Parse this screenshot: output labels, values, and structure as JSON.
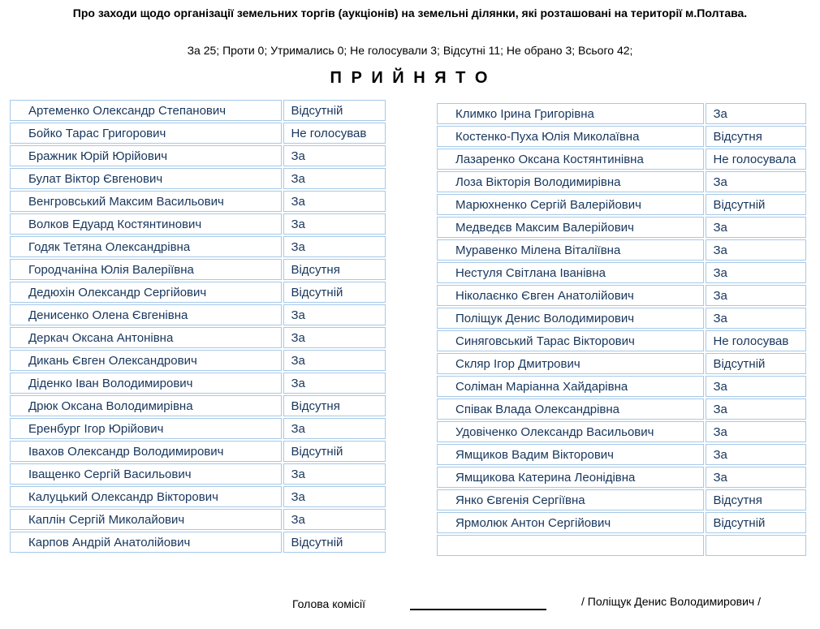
{
  "header": {
    "title": "Про заходи щодо організації земельних торгів (аукціонів) на земельні ділянки, які розташовані на території м.Полтава.",
    "summary": "За 25; Проти 0; Утримались 0; Не голосували 3; Відсутні 11; Не обрано 3; Всього 42;",
    "result": "П Р И Й Н Я Т О"
  },
  "colors": {
    "table_text": "#17365d",
    "table_border": "#a6c9e8",
    "header_text": "#000000"
  },
  "tables": {
    "left": {
      "rows": [
        {
          "name": "Артеменко Олександр Степанович",
          "vote": "Відсутній"
        },
        {
          "name": "Бойко Тарас Григорович",
          "vote": "Не голосував"
        },
        {
          "name": "Бражник Юрій Юрійович",
          "vote": "За"
        },
        {
          "name": "Булат Віктор Євгенович",
          "vote": "За"
        },
        {
          "name": "Венгровський Максим Васильович",
          "vote": "За"
        },
        {
          "name": "Волков Едуард Костянтинович",
          "vote": "За"
        },
        {
          "name": "Годяк Тетяна Олександрівна",
          "vote": "За"
        },
        {
          "name": "Городчаніна Юлія Валеріївна",
          "vote": "Відсутня"
        },
        {
          "name": "Дедюхін Олександр Сергійович",
          "vote": "Відсутній"
        },
        {
          "name": "Денисенко Олена Євгенівна",
          "vote": "За"
        },
        {
          "name": "Деркач Оксана Антонівна",
          "vote": "За"
        },
        {
          "name": "Дикань Євген Олександрович",
          "vote": "За"
        },
        {
          "name": "Діденко Іван Володимирович",
          "vote": "За"
        },
        {
          "name": "Дрюк Оксана Володимирівна",
          "vote": "Відсутня"
        },
        {
          "name": "Еренбург Ігор Юрійович",
          "vote": "За"
        },
        {
          "name": "Івахов Олександр Володимирович",
          "vote": "Відсутній"
        },
        {
          "name": "Іващенко Сергій Васильович",
          "vote": "За"
        },
        {
          "name": "Калуцький Олександр Вікторович",
          "vote": "За"
        },
        {
          "name": "Каплін Сергій Миколайович",
          "vote": "За"
        },
        {
          "name": "Карпов Андрій Анатолійович",
          "vote": "Відсутній"
        }
      ]
    },
    "right": {
      "rows": [
        {
          "name": "Климко Ірина Григорівна",
          "vote": "За"
        },
        {
          "name": "Костенко-Пуха Юлія Миколаївна",
          "vote": "Відсутня"
        },
        {
          "name": "Лазаренко Оксана Костянтинівна",
          "vote": "Не голосувала"
        },
        {
          "name": "Лоза Вікторія Володимирівна",
          "vote": "За"
        },
        {
          "name": "Марюхненко Сергій Валерійович",
          "vote": "Відсутній"
        },
        {
          "name": "Медведєв Максим Валерійович",
          "vote": "За"
        },
        {
          "name": "Муравенко Мілена Віталіївна",
          "vote": "За"
        },
        {
          "name": "Нестуля Світлана Іванівна",
          "vote": "За"
        },
        {
          "name": "Ніколаєнко Євген Анатолійович",
          "vote": "За"
        },
        {
          "name": "Поліщук Денис Володимирович",
          "vote": "За"
        },
        {
          "name": "Синяговський Тарас Вікторович",
          "vote": "Не голосував"
        },
        {
          "name": "Скляр Ігор Дмитрович",
          "vote": "Відсутній"
        },
        {
          "name": "Соліман Маріанна Хайдарівна",
          "vote": "За"
        },
        {
          "name": "Співак Влада Олександрівна",
          "vote": "За"
        },
        {
          "name": "Удовіченко Олександр Васильович",
          "vote": "За"
        },
        {
          "name": "Ямщиков Вадим Вікторович",
          "vote": "За"
        },
        {
          "name": "Ямщикова Катерина Леонідівна",
          "vote": "За"
        },
        {
          "name": "Янко Євгенія Сергіївна",
          "vote": "Відсутня"
        },
        {
          "name": "Ярмолюк Антон Сергійович",
          "vote": "Відсутній"
        },
        {
          "name": "",
          "vote": ""
        }
      ]
    }
  },
  "footer": {
    "role_label": "Голова комісії",
    "signer": "/ Поліщук Денис Володимирович /"
  }
}
